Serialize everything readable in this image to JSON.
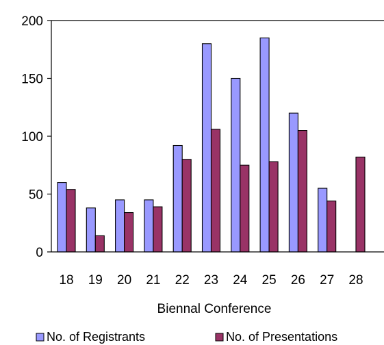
{
  "chart_data": {
    "type": "bar",
    "categories": [
      "18",
      "19",
      "20",
      "21",
      "22",
      "23",
      "24",
      "25",
      "26",
      "27",
      "28"
    ],
    "series": [
      {
        "name": "No. of Registrants",
        "color": "#9999ff",
        "values": [
          60,
          38,
          45,
          45,
          92,
          180,
          150,
          185,
          120,
          55,
          null
        ]
      },
      {
        "name": "No. of Presentations",
        "color": "#993366",
        "values": [
          54,
          14,
          34,
          39,
          80,
          106,
          75,
          78,
          105,
          44,
          82
        ]
      }
    ],
    "xlabel": "Biennal Conference",
    "ylabel": "",
    "ylim": [
      0,
      200
    ],
    "yticks": [
      "0",
      "50",
      "100",
      "150",
      "200"
    ],
    "grid": false,
    "legend_position": "bottom"
  }
}
